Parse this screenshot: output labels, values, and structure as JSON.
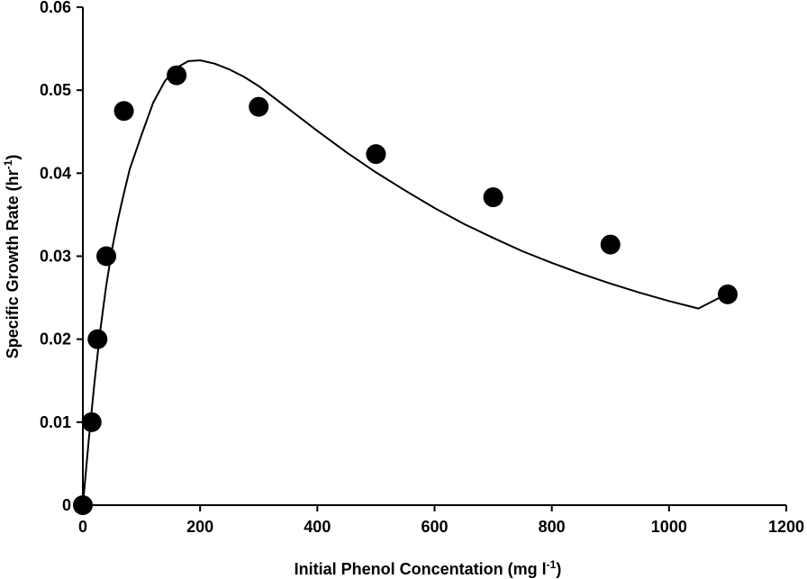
{
  "chart_data": {
    "type": "scatter",
    "title": "",
    "xlabel": {
      "main": "Initial Phenol Concentation (mg l",
      "sup": "-1",
      "close": ")"
    },
    "ylabel": {
      "main": "Specific Growth Rate (hr",
      "sup": "-1",
      "close": ")"
    },
    "xlim": [
      0,
      1200
    ],
    "ylim": [
      0,
      0.06
    ],
    "x_ticks": [
      0,
      200,
      400,
      600,
      800,
      1000,
      1200
    ],
    "y_ticks": [
      0,
      0.01,
      0.02,
      0.03,
      0.04,
      0.05,
      0.06
    ],
    "x_tick_labels": [
      "0",
      "200",
      "400",
      "600",
      "800",
      "1000",
      "1200"
    ],
    "y_tick_labels": [
      "0",
      "0.01",
      "0.02",
      "0.03",
      "0.04",
      "0.05",
      "0.06"
    ],
    "grid": false,
    "legend": "none",
    "series": [
      {
        "kind": "points",
        "color": "#000000",
        "x": [
          0,
          15,
          25,
          40,
          70,
          160,
          300,
          500,
          700,
          900,
          1100
        ],
        "y": [
          0,
          0.01,
          0.02,
          0.03,
          0.0475,
          0.0518,
          0.048,
          0.0423,
          0.0371,
          0.0314,
          0.0254
        ]
      },
      {
        "kind": "line",
        "color": "#000000",
        "x": [
          0,
          10,
          20,
          30,
          40,
          50,
          60,
          70,
          80,
          100,
          120,
          140,
          160,
          180,
          200,
          225,
          250,
          275,
          300,
          350,
          400,
          450,
          500,
          550,
          600,
          650,
          700,
          750,
          800,
          850,
          900,
          950,
          1000,
          1050,
          1100
        ],
        "y": [
          0,
          0.0078,
          0.0149,
          0.0212,
          0.0265,
          0.0309,
          0.0345,
          0.0376,
          0.0405,
          0.0446,
          0.0485,
          0.0511,
          0.0527,
          0.0535,
          0.0536,
          0.0532,
          0.0525,
          0.0516,
          0.0505,
          0.0478,
          0.0451,
          0.0425,
          0.0401,
          0.0379,
          0.0358,
          0.0339,
          0.0322,
          0.0306,
          0.0292,
          0.0279,
          0.0267,
          0.0256,
          0.0246,
          0.0237,
          0.0255
        ]
      }
    ]
  }
}
